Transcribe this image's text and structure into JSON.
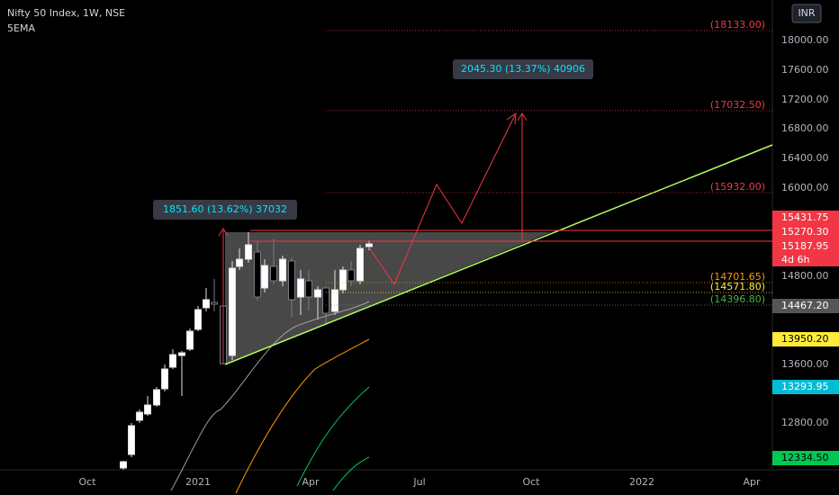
{
  "header": {
    "symbol": "Nifty 50 Index, 1W, NSE",
    "indicator": "5EMA"
  },
  "currency": "INR",
  "price_axis": [
    "18000.00",
    "17600.00",
    "17200.00",
    "16800.00",
    "16400.00",
    "16000.00",
    "14800.00",
    "13600.00",
    "12800.00"
  ],
  "time_axis": [
    "Oct",
    "2021",
    "Apr",
    "Jul",
    "Oct",
    "2022",
    "Apr"
  ],
  "price_tags": [
    {
      "label": "15431.75",
      "color": "#f23645",
      "text_color": "#ffffff"
    },
    {
      "label": "15270.30",
      "color": "#f23645",
      "text_color": "#ffffff"
    },
    {
      "label": "15187.95",
      "color": "#f23645",
      "text_color": "#ffffff"
    },
    {
      "label": "14467.20",
      "color": "#555555",
      "text_color": "#ffffff"
    },
    {
      "label": "13950.20",
      "color": "#ffeb3b",
      "text_color": "#000000"
    },
    {
      "label": "13293.95",
      "color": "#00bcd4",
      "text_color": "#ffffff"
    },
    {
      "label": "12334.50",
      "color": "#00c853",
      "text_color": "#000000"
    }
  ],
  "countdown": "4d 6h",
  "level_labels": [
    {
      "label": "(18133.00)",
      "color": "#f23645"
    },
    {
      "label": "(17032.50)",
      "color": "#f23645"
    },
    {
      "label": "(15932.00)",
      "color": "#f23645"
    },
    {
      "label": "(14701.65)",
      "color": "#ff9800"
    },
    {
      "label": "(14571.80)",
      "color": "#ffeb3b"
    },
    {
      "label": "(14396.80)",
      "color": "#4caf50"
    }
  ],
  "measures": [
    "2045.30 (13.37%) 40906",
    "1851.60 (13.62%) 37032"
  ]
}
